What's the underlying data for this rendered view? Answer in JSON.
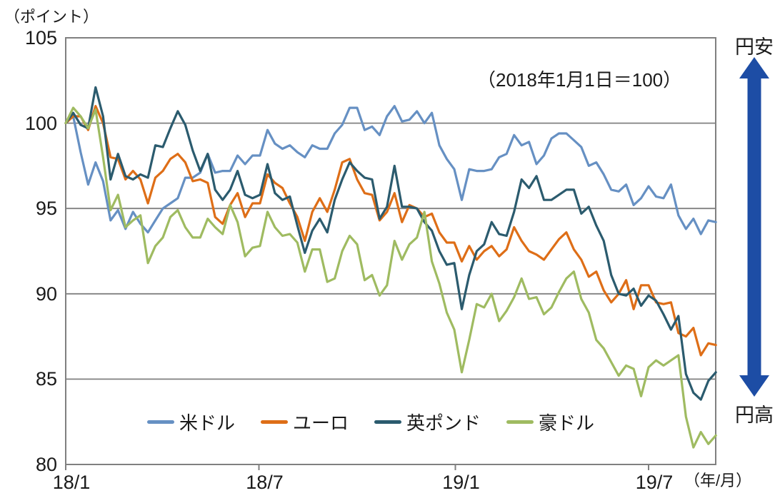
{
  "labels": {
    "y_unit": "（ポイント）",
    "x_unit": "（年/月）",
    "annotation": "（2018年1月1日＝100）",
    "yen_weak": "円安",
    "yen_strong": "円高"
  },
  "ui_colors": {
    "grid": "#808080",
    "border": "#808080",
    "text": "#1a1a1a",
    "arrow": "#1d4da5"
  },
  "chart_data": {
    "type": "line",
    "title": "",
    "subtitle_annotation": "（2018年1月1日＝100）",
    "ylabel": "（ポイント）",
    "xlabel": "（年/月）",
    "ylim": [
      80,
      105
    ],
    "yticks": [
      80,
      85,
      90,
      95,
      100,
      105
    ],
    "grid": true,
    "legend_position": "bottom",
    "xticks": [
      {
        "label": "18/1",
        "day_offset": 0
      },
      {
        "label": "18/7",
        "day_offset": 181
      },
      {
        "label": "19/1",
        "day_offset": 365
      },
      {
        "label": "19/7",
        "day_offset": 546
      }
    ],
    "x_step_days": 7,
    "x_dates": [
      "2018-01-01",
      "2018-01-08",
      "2018-01-15",
      "2018-01-22",
      "2018-01-29",
      "2018-02-05",
      "2018-02-12",
      "2018-02-19",
      "2018-02-26",
      "2018-03-05",
      "2018-03-12",
      "2018-03-19",
      "2018-03-26",
      "2018-04-02",
      "2018-04-09",
      "2018-04-16",
      "2018-04-23",
      "2018-04-30",
      "2018-05-07",
      "2018-05-14",
      "2018-05-21",
      "2018-05-28",
      "2018-06-04",
      "2018-06-11",
      "2018-06-18",
      "2018-06-25",
      "2018-07-02",
      "2018-07-09",
      "2018-07-16",
      "2018-07-23",
      "2018-07-30",
      "2018-08-06",
      "2018-08-13",
      "2018-08-20",
      "2018-08-27",
      "2018-09-03",
      "2018-09-10",
      "2018-09-17",
      "2018-09-24",
      "2018-10-01",
      "2018-10-08",
      "2018-10-15",
      "2018-10-22",
      "2018-10-29",
      "2018-11-05",
      "2018-11-12",
      "2018-11-19",
      "2018-11-26",
      "2018-12-03",
      "2018-12-10",
      "2018-12-17",
      "2018-12-24",
      "2018-12-31",
      "2019-01-07",
      "2019-01-14",
      "2019-01-21",
      "2019-01-28",
      "2019-02-04",
      "2019-02-11",
      "2019-02-18",
      "2019-02-25",
      "2019-03-04",
      "2019-03-11",
      "2019-03-18",
      "2019-03-25",
      "2019-04-01",
      "2019-04-08",
      "2019-04-15",
      "2019-04-22",
      "2019-04-29",
      "2019-05-06",
      "2019-05-13",
      "2019-05-20",
      "2019-05-27",
      "2019-06-03",
      "2019-06-10",
      "2019-06-17",
      "2019-06-24",
      "2019-07-01",
      "2019-07-08",
      "2019-07-15",
      "2019-07-22",
      "2019-07-29",
      "2019-08-05",
      "2019-08-12",
      "2019-08-19",
      "2019-08-26",
      "2019-09-02"
    ],
    "series": [
      {
        "id": "usd",
        "name": "米ドル",
        "color": "#6690c3",
        "values": [
          100,
          100.4,
          98.3,
          96.4,
          97.7,
          96.6,
          94.3,
          94.9,
          93.8,
          94.8,
          94.1,
          93.6,
          94.3,
          95,
          95.3,
          95.6,
          96.8,
          96.8,
          97.1,
          98.2,
          97.1,
          97.2,
          97.2,
          98.1,
          97.6,
          98.1,
          98.1,
          99.6,
          98.8,
          98.5,
          98.7,
          98.3,
          98,
          98.7,
          98.5,
          98.5,
          99.4,
          99.9,
          100.9,
          100.9,
          99.6,
          99.8,
          99.3,
          100.4,
          101,
          100.1,
          100.2,
          100.7,
          100,
          100.6,
          98.7,
          97.9,
          97.3,
          95.5,
          97.3,
          97.2,
          97.2,
          97.3,
          98,
          98.2,
          99.3,
          98.7,
          98.9,
          97.6,
          98.1,
          99.1,
          99.4,
          99.4,
          99,
          98.6,
          97.5,
          97.7,
          97,
          96.1,
          96,
          96.4,
          95.2,
          95.6,
          96.3,
          95.7,
          95.6,
          96.4,
          94.6,
          93.8,
          94.4,
          93.5,
          94.3,
          94.2
        ]
      },
      {
        "id": "eur",
        "name": "ユーロ",
        "color": "#de6e17",
        "values": [
          100,
          100.4,
          100.4,
          99.6,
          101,
          100,
          98,
          97.9,
          96.7,
          97.2,
          96.7,
          95.3,
          96.8,
          97.2,
          97.9,
          98.2,
          97.7,
          96.6,
          96.7,
          96.5,
          94.5,
          94.1,
          95.2,
          95.9,
          94.5,
          95.3,
          95.3,
          97,
          96.5,
          96.2,
          95.3,
          94.5,
          93.1,
          94.8,
          95.6,
          94.8,
          96.1,
          97.7,
          97.9,
          96.7,
          95.9,
          95.8,
          94.3,
          94.8,
          95.9,
          94.2,
          95.2,
          95,
          94.5,
          94.7,
          93.6,
          93,
          93,
          91.9,
          92.8,
          92,
          92.5,
          92.8,
          92.2,
          92.6,
          93.9,
          93.1,
          92.5,
          92.3,
          92,
          92.6,
          93.2,
          93.6,
          92.6,
          92,
          91,
          91.3,
          90.2,
          89.5,
          90,
          90.8,
          89.1,
          90.5,
          90.5,
          89.5,
          89.4,
          89.5,
          87.7,
          87.5,
          88,
          86.4,
          87.1,
          87
        ]
      },
      {
        "id": "gbp",
        "name": "英ポンド",
        "color": "#2b5b6e",
        "values": [
          100,
          100.6,
          99.9,
          99.7,
          102.1,
          100.4,
          96.7,
          98.2,
          96.9,
          96.7,
          97,
          96.8,
          98.7,
          98.6,
          99.7,
          100.7,
          99.9,
          98.4,
          97.2,
          98.2,
          96.1,
          95.5,
          96.1,
          97.2,
          95.8,
          95.6,
          95.8,
          97.6,
          95.9,
          95.5,
          95.7,
          94,
          92.4,
          93.7,
          94.4,
          93.6,
          95.5,
          96.7,
          97.7,
          97.2,
          96.8,
          96.7,
          94.4,
          95.1,
          97.5,
          95.1,
          95.1,
          95,
          94.2,
          93.7,
          92.5,
          91.7,
          91.8,
          89.1,
          91.1,
          92.5,
          92.9,
          94.2,
          93.5,
          93.4,
          94.8,
          96.7,
          96.2,
          96.9,
          95.5,
          95.5,
          95.8,
          96.1,
          96.1,
          94.7,
          95.1,
          94,
          93.1,
          91.1,
          90,
          89.9,
          90.3,
          89.3,
          89.9,
          89.6,
          88.8,
          87.9,
          88.7,
          85.3,
          84.2,
          83.8,
          84.9,
          85.4
        ]
      },
      {
        "id": "aud",
        "name": "豪ドル",
        "color": "#9fbb61",
        "values": [
          100,
          100.9,
          100.4,
          99.7,
          100.8,
          98,
          94.9,
          95.8,
          93.9,
          94.3,
          94.6,
          91.8,
          92.8,
          93.3,
          94.5,
          94.9,
          93.9,
          93.3,
          93.3,
          94.4,
          93.9,
          93.5,
          95.2,
          94.2,
          92.2,
          92.7,
          92.8,
          94.8,
          93.9,
          93.4,
          93.5,
          93,
          91.3,
          92.6,
          92.6,
          90.7,
          90.9,
          92.5,
          93.4,
          92.9,
          90.8,
          91.1,
          89.9,
          90.5,
          93.1,
          92,
          92.9,
          93.3,
          94.8,
          91.9,
          90.6,
          88.9,
          87.9,
          85.4,
          87.3,
          89.4,
          89.2,
          90,
          88.4,
          89,
          89.8,
          90.9,
          89.7,
          89.8,
          88.8,
          89.2,
          90.1,
          90.9,
          91.3,
          89.7,
          88.9,
          87.3,
          86.8,
          86,
          85.2,
          85.8,
          85.6,
          84,
          85.7,
          86.1,
          85.8,
          86.1,
          86.4,
          82.8,
          81,
          81.9,
          81.2,
          81.7
        ]
      }
    ]
  }
}
